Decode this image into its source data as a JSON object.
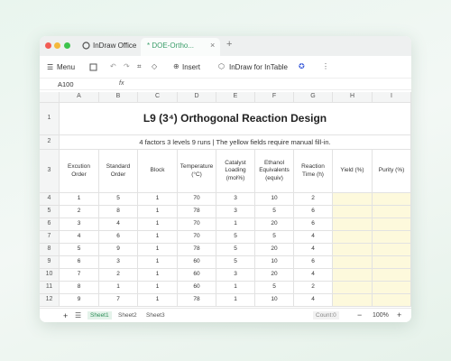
{
  "tabs": {
    "app": "InDraw Office",
    "document": "* DOE-Ortho..."
  },
  "toolbar": {
    "menu": "Menu",
    "insert": "Insert",
    "plugin": "InDraw for InTable"
  },
  "formula_bar": {
    "cell": "A100",
    "fx": "fx"
  },
  "columns": [
    "A",
    "B",
    "C",
    "D",
    "E",
    "F",
    "G",
    "H",
    "I"
  ],
  "row_numbers": [
    1,
    2,
    3,
    4,
    5,
    6,
    7,
    8,
    9,
    10,
    11,
    12
  ],
  "sheet": {
    "title": "L9 (3⁴) Orthogonal Reaction Design",
    "subtitle": "4 factors 3 levels 9 runs | The yellow fields require manual fill-in.",
    "header": [
      "Excution Order",
      "Standard Order",
      "Block",
      "Temperature (°C)",
      "Catalyst Loading (mol%)",
      "Ethanol Equivalents (equiv)",
      "Reaction Time (h)",
      "Yield (%)",
      "Purity (%)"
    ],
    "rows": [
      [
        1,
        5,
        1,
        70,
        3,
        10,
        2
      ],
      [
        2,
        8,
        1,
        78,
        3,
        5,
        6
      ],
      [
        3,
        4,
        1,
        70,
        1,
        20,
        6
      ],
      [
        4,
        6,
        1,
        70,
        5,
        5,
        4
      ],
      [
        5,
        9,
        1,
        78,
        5,
        20,
        4
      ],
      [
        6,
        3,
        1,
        60,
        5,
        10,
        6
      ],
      [
        7,
        2,
        1,
        60,
        3,
        20,
        4
      ],
      [
        8,
        1,
        1,
        60,
        1,
        5,
        2
      ],
      [
        9,
        7,
        1,
        78,
        1,
        10,
        4
      ]
    ]
  },
  "status": {
    "sheets": [
      "Sheet1",
      "Sheet2",
      "Sheet3"
    ],
    "count": "Count:0",
    "zoom": "100%"
  }
}
